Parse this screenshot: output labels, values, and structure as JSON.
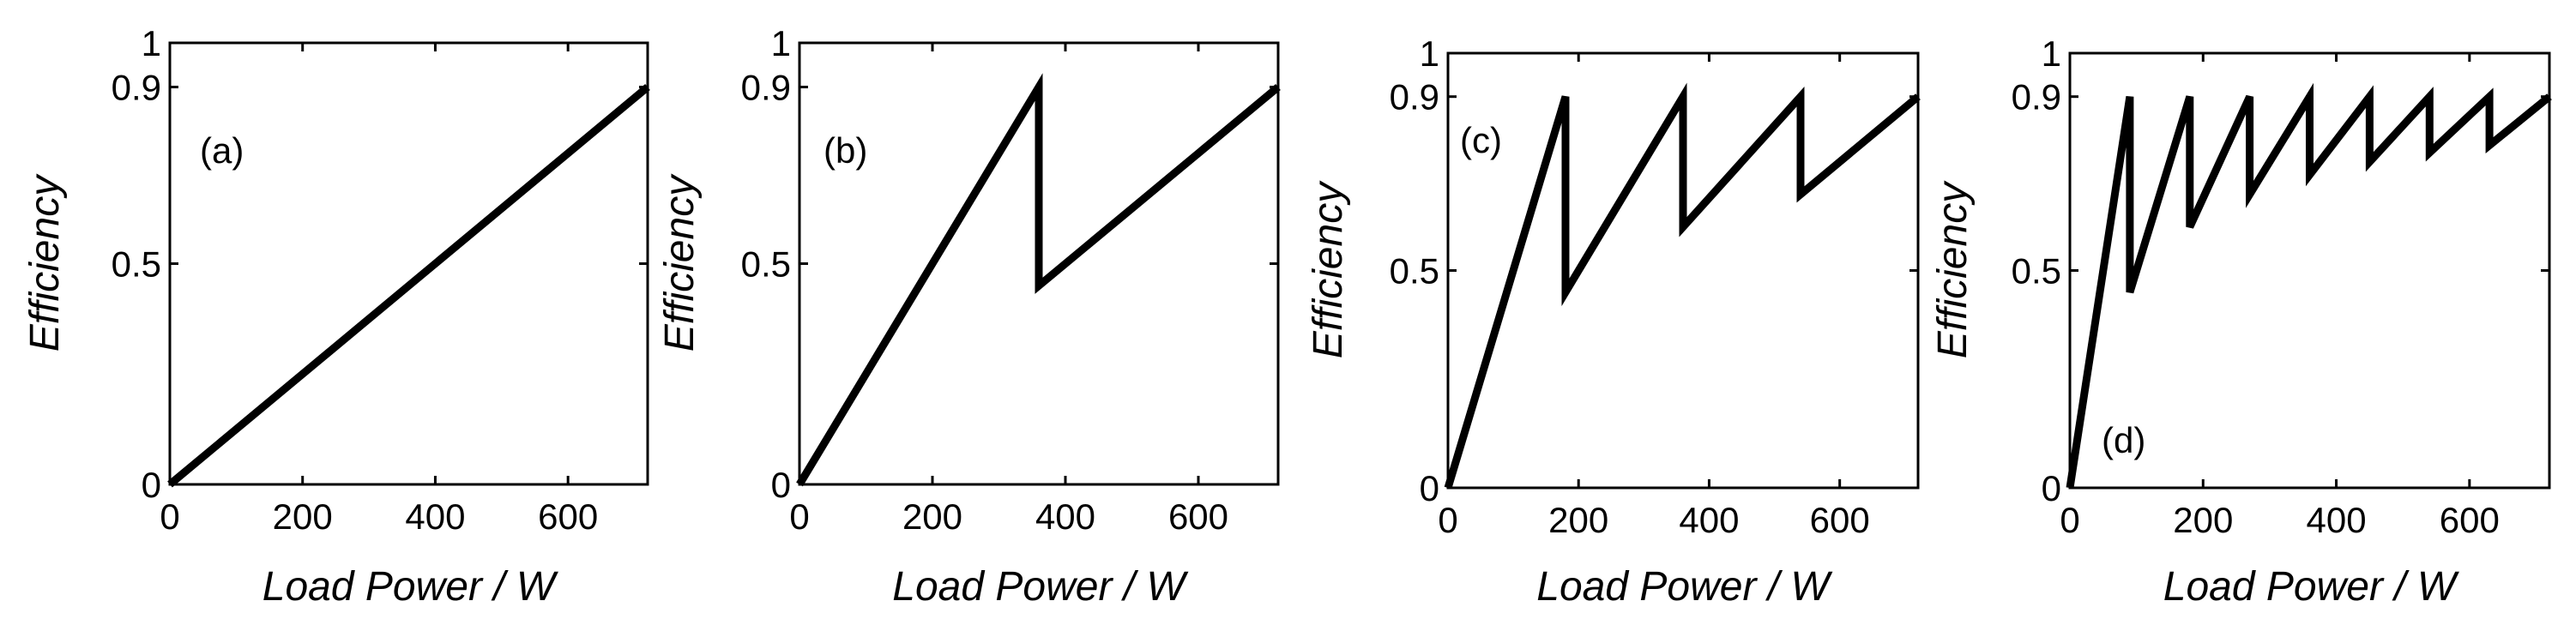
{
  "chart_data": [
    {
      "type": "line",
      "panel_label": "(a)",
      "xlabel": "Load Power / W",
      "ylabel": "Efficiency",
      "xlim": [
        0,
        720
      ],
      "ylim": [
        0,
        1
      ],
      "xticks": [
        0,
        200,
        400,
        600
      ],
      "yticks": [
        0,
        0.5,
        0.9,
        1
      ],
      "xtick_labels": [
        "0",
        "200",
        "400",
        "600"
      ],
      "ytick_labels": [
        "0",
        "0.5",
        "0.9",
        "1"
      ],
      "series": [
        {
          "name": "efficiency",
          "x": [
            0,
            720
          ],
          "y": [
            0,
            0.9
          ]
        }
      ]
    },
    {
      "type": "line",
      "panel_label": "(b)",
      "xlabel": "Load Power / W",
      "ylabel": "Efficiency",
      "xlim": [
        0,
        720
      ],
      "ylim": [
        0,
        1
      ],
      "xticks": [
        0,
        200,
        400,
        600
      ],
      "yticks": [
        0,
        0.5,
        0.9,
        1
      ],
      "xtick_labels": [
        "0",
        "200",
        "400",
        "600"
      ],
      "ytick_labels": [
        "0",
        "0.5",
        "0.9",
        "1"
      ],
      "series": [
        {
          "name": "efficiency",
          "x": [
            0,
            360,
            360,
            720
          ],
          "y": [
            0,
            0.9,
            0.45,
            0.9
          ]
        }
      ]
    },
    {
      "type": "line",
      "panel_label": "(c)",
      "xlabel": "Load Power / W",
      "ylabel": "Efficiency",
      "xlim": [
        0,
        720
      ],
      "ylim": [
        0,
        1
      ],
      "xticks": [
        0,
        200,
        400,
        600
      ],
      "yticks": [
        0,
        0.5,
        0.9,
        1
      ],
      "xtick_labels": [
        "0",
        "200",
        "400",
        "600"
      ],
      "ytick_labels": [
        "0",
        "0.5",
        "0.9",
        "1"
      ],
      "series": [
        {
          "name": "efficiency",
          "x": [
            0,
            180,
            180,
            360,
            360,
            540,
            540,
            720
          ],
          "y": [
            0,
            0.9,
            0.45,
            0.9,
            0.6,
            0.9,
            0.675,
            0.9
          ]
        }
      ]
    },
    {
      "type": "line",
      "panel_label": "(d)",
      "xlabel": "Load Power / W",
      "ylabel": "Efficiency",
      "xlim": [
        0,
        720
      ],
      "ylim": [
        0,
        1
      ],
      "xticks": [
        0,
        200,
        400,
        600
      ],
      "yticks": [
        0,
        0.5,
        0.9,
        1
      ],
      "xtick_labels": [
        "0",
        "200",
        "400",
        "600"
      ],
      "ytick_labels": [
        "0",
        "0.5",
        "0.9",
        "1"
      ],
      "series": [
        {
          "name": "efficiency",
          "x": [
            0,
            90,
            90,
            180,
            180,
            270,
            270,
            360,
            360,
            450,
            450,
            540,
            540,
            630,
            630,
            720
          ],
          "y": [
            0,
            0.9,
            0.45,
            0.9,
            0.6,
            0.9,
            0.675,
            0.9,
            0.72,
            0.9,
            0.75,
            0.9,
            0.771,
            0.9,
            0.788,
            0.9
          ]
        }
      ]
    }
  ]
}
